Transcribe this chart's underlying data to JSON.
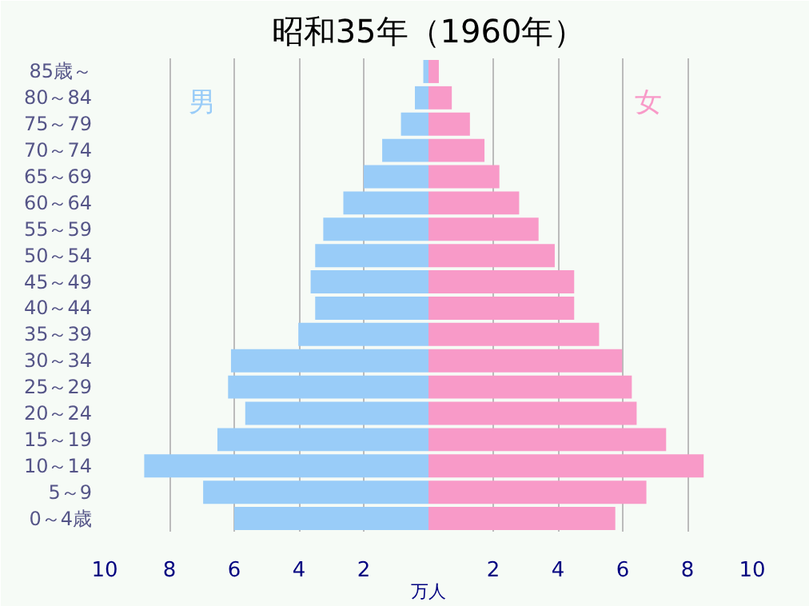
{
  "chart_data": {
    "type": "bar",
    "orientation": "horizontal",
    "title": "昭和35年（1960年）",
    "xlabel": "万人",
    "categories": [
      "85歳～",
      "80～84",
      "75～79",
      "70～74",
      "65～69",
      "60～64",
      "55～59",
      "50～54",
      "45～49",
      "40～44",
      "35～39",
      "30～34",
      "25～29",
      "20～24",
      "15～19",
      "10～14",
      "5～9",
      "0～4歳"
    ],
    "series": [
      {
        "name": "男",
        "color": "#99ccf8",
        "values": [
          -0.16,
          -0.42,
          -0.85,
          -1.43,
          -2.0,
          -2.63,
          -3.25,
          -3.5,
          -3.64,
          -3.5,
          -4.02,
          -6.1,
          -6.19,
          -5.66,
          -6.52,
          -8.78,
          -6.96,
          -6.0
        ]
      },
      {
        "name": "女",
        "color": "#f89ac8",
        "values": [
          0.32,
          0.72,
          1.28,
          1.73,
          2.19,
          2.8,
          3.4,
          3.9,
          4.5,
          4.5,
          5.27,
          5.98,
          6.28,
          6.43,
          7.34,
          8.5,
          6.73,
          5.77
        ]
      }
    ],
    "xlim": [
      -10,
      10
    ],
    "xticks": [
      {
        "value": -10,
        "label": "10"
      },
      {
        "value": -8,
        "label": "8"
      },
      {
        "value": -6,
        "label": "6"
      },
      {
        "value": -4,
        "label": "4"
      },
      {
        "value": -2,
        "label": "2"
      },
      2,
      4,
      6,
      8,
      10
    ],
    "grid": "x",
    "stacked": true,
    "legend": false
  }
}
